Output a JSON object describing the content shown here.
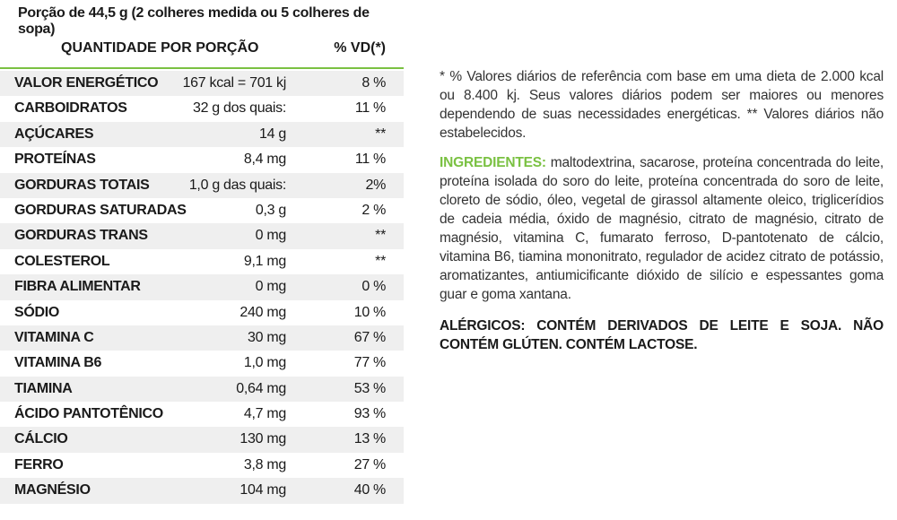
{
  "serving": "Porção de 44,5 g (2 colheres medida ou 5 colheres de sopa)",
  "header": {
    "quantity": "QUANTIDADE POR PORÇÃO",
    "vd": "% VD(*)"
  },
  "rows": [
    {
      "name": "VALOR ENERGÉTICO",
      "qty": "167 kcal = 701 kj",
      "vd": "8 %"
    },
    {
      "name": "CARBOIDRATOS",
      "qty": "32 g dos quais:",
      "vd": "11 %"
    },
    {
      "name": "AÇÚCARES",
      "qty": "14 g",
      "vd": "**"
    },
    {
      "name": "PROTEÍNAS",
      "qty": "8,4 mg",
      "vd": "11 %"
    },
    {
      "name": "GORDURAS TOTAIS",
      "qty": "1,0 g das quais:",
      "vd": "2%"
    },
    {
      "name": "GORDURAS SATURADAS",
      "qty": "0,3 g",
      "vd": "2 %"
    },
    {
      "name": "GORDURAS TRANS",
      "qty": "0 mg",
      "vd": "**"
    },
    {
      "name": "COLESTEROL",
      "qty": "9,1 mg",
      "vd": "**"
    },
    {
      "name": "FIBRA ALIMENTAR",
      "qty": "0 mg",
      "vd": "0 %"
    },
    {
      "name": "SÓDIO",
      "qty": "240 mg",
      "vd": "10 %"
    },
    {
      "name": "VITAMINA C",
      "qty": "30 mg",
      "vd": "67 %"
    },
    {
      "name": "VITAMINA B6",
      "qty": "1,0 mg",
      "vd": "77 %"
    },
    {
      "name": "TIAMINA",
      "qty": "0,64 mg",
      "vd": "53 %"
    },
    {
      "name": "ÁCIDO PANTOTÊNICO",
      "qty": "4,7 mg",
      "vd": "93 %"
    },
    {
      "name": "CÁLCIO",
      "qty": "130 mg",
      "vd": "13 %"
    },
    {
      "name": "FERRO",
      "qty": "3,8 mg",
      "vd": "27 %"
    },
    {
      "name": "MAGNÉSIO",
      "qty": "104 mg",
      "vd": "40 %"
    }
  ],
  "footnote": "* % Valores diários de referência com base em uma dieta de 2.000 kcal ou 8.400 kj. Seus valores diários podem ser maiores ou menores dependendo de suas necessidades energéticas. ** Valores diários não estabelecidos.",
  "ingredients": {
    "label": "INGREDIENTES:",
    "text": " maltodextrina, sacarose, proteína concentrada do leite, proteína isolada do soro do leite, proteína concentrada do soro de leite, cloreto de sódio, óleo, vegetal de girassol altamente oleico, triglicerídios de cadeia média, óxido de magnésio, citrato de magnésio, citrato de magnésio, vitamina C, fumarato ferroso, D-pantotenato de cálcio, vitamina B6, tiamina mononitrato, regulador de acidez citrato de potássio, aromatizantes, antiumicificante dióxido de silício e espessantes goma guar e goma xantana."
  },
  "allergens": "ALÉRGICOS: CONTÉM DERIVADOS DE LEITE E SOJA. NÃO CONTÉM GLÚTEN. CONTÉM LACTOSE.",
  "colors": {
    "accent": "#7ac142",
    "row_shade": "#efefef"
  }
}
